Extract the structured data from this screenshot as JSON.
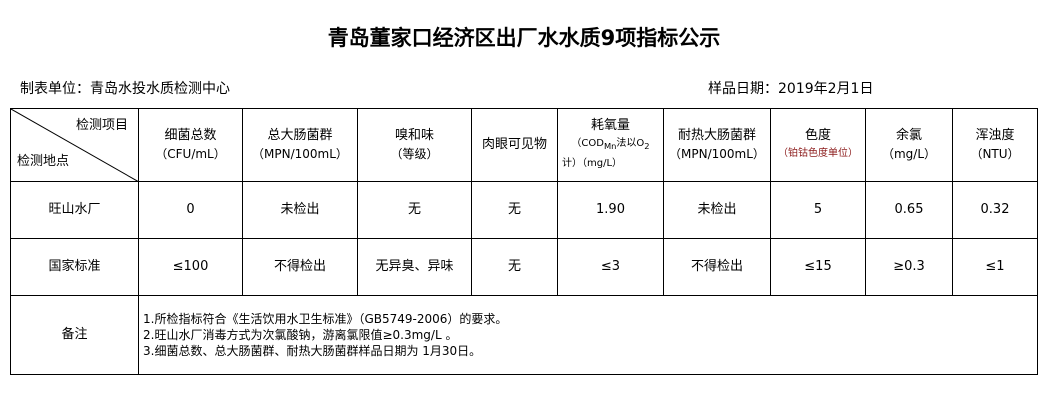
{
  "title": "青岛董家口经济区出厂水水质9项指标公示",
  "org": "制表单位：青岛水投水质检测中心",
  "date": "样品日期：2019年2月1日",
  "header": {
    "corner_top": "检测项目",
    "corner_bottom": "检测地点",
    "cols": [
      {
        "name": "细菌总数",
        "unit": "（CFU/mL）"
      },
      {
        "name": "总大肠菌群",
        "unit": "（MPN/100mL）"
      },
      {
        "name": "嗅和味",
        "unit": "（等级）"
      },
      {
        "name": "肉眼可见物",
        "unit": ""
      },
      {
        "name": "耗氧量",
        "unit": "（COD<sub>Mn</sub>法以O<sub>2</sub>",
        "unit2": "计）（mg/L）"
      },
      {
        "name": "耐热大肠菌群",
        "unit": "（MPN/100mL）"
      },
      {
        "name": "色度",
        "unit": "（铂钴色度单位）"
      },
      {
        "name": "余氯",
        "unit": "（mg/L）"
      },
      {
        "name": "浑浊度",
        "unit": "（NTU）"
      }
    ]
  },
  "rows": [
    {
      "label": "旺山水厂",
      "values": [
        "0",
        "未检出",
        "无",
        "无",
        "1.90",
        "未检出",
        "5",
        "0.65",
        "0.32"
      ]
    },
    {
      "label": "国家标准",
      "values": [
        "≤100",
        "不得检出",
        "无异臭、异味",
        "无",
        "≤3",
        "不得检出",
        "≤15",
        "≥0.3",
        "≤1"
      ]
    }
  ],
  "notes": {
    "label": "备注",
    "lines": [
      "1.所检指标符合《生活饮用水卫生标准》（GB5749-2006）的要求。",
      "2.旺山水厂消毒方式为次氯酸钠，游离氯限值≥0.3mg/L 。",
      "3.细菌总数、总大肠菌群、耐热大肠菌群样品日期为 1月30日。"
    ]
  }
}
